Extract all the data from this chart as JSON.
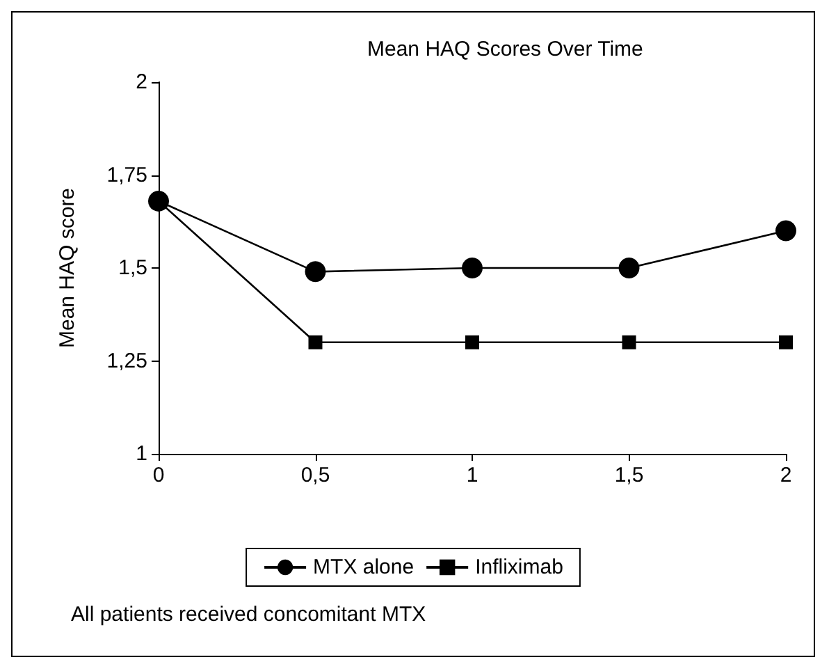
{
  "chart_data": {
    "type": "line",
    "title": "Mean HAQ Scores Over Time",
    "ylabel": "Mean HAQ score",
    "categories": [
      "0",
      "0,5",
      "1",
      "1,5",
      "2"
    ],
    "series": [
      {
        "name": "MTX alone",
        "color": "#000000",
        "marker": "circle",
        "values": [
          1.68,
          1.49,
          1.5,
          1.5,
          1.6
        ]
      },
      {
        "name": "Infliximab",
        "color": "#000000",
        "marker": "square",
        "values": [
          1.68,
          1.3,
          1.3,
          1.3,
          1.3
        ]
      }
    ],
    "ylim": [
      1,
      2
    ],
    "yticks": [
      1,
      {
        "value": 1.25,
        "label": "1,25"
      },
      {
        "value": 1.5,
        "label": "1,5"
      },
      {
        "value": 1.75,
        "label": "1,75"
      },
      2
    ],
    "grid": false,
    "legend": "bottom",
    "line_style": "solid",
    "annotations": [
      "All patients received concomitant MTX"
    ]
  }
}
